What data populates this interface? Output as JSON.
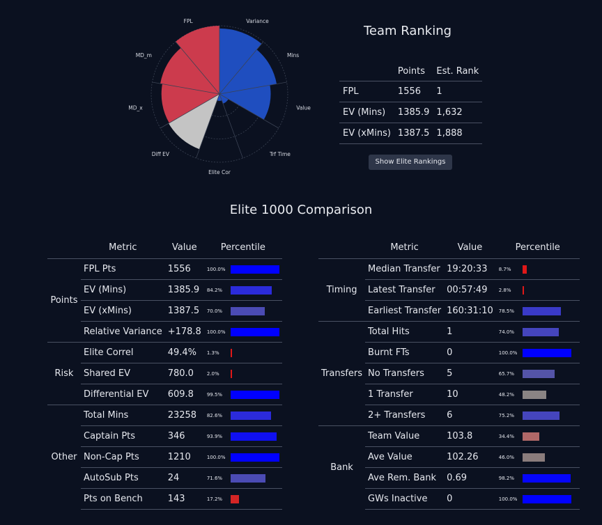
{
  "radar": {
    "labels": [
      "Variance",
      "Mins",
      "Value",
      "Trf Time",
      "Elite Cor",
      "Diff EV",
      "MD_x",
      "MD_m",
      "FPL"
    ],
    "values": [
      0.96,
      0.85,
      0.75,
      0.15,
      0.1,
      0.86,
      0.85,
      0.88,
      1.0
    ],
    "colors": [
      "#1f4ebf",
      "#1f4ebf",
      "#1f4ebf",
      "#1f4ebf",
      "#1f4ebf",
      "#c4c4c4",
      "#cc3b4d",
      "#cc3b4d",
      "#cc3b4d"
    ]
  },
  "ranking": {
    "title": "Team Ranking",
    "headers": [
      "",
      "Points",
      "Est. Rank"
    ],
    "rows": [
      {
        "name": "FPL",
        "points": "1556",
        "rank": "1"
      },
      {
        "name": "EV (Mins)",
        "points": "1385.9",
        "rank": "1,632"
      },
      {
        "name": "EV (xMins)",
        "points": "1387.5",
        "rank": "1,888"
      }
    ],
    "button_label": "Show Elite Rankings"
  },
  "comparison": {
    "title": "Elite 1000 Comparison",
    "headers": [
      "",
      "Metric",
      "Value",
      "Percentile"
    ],
    "left": [
      {
        "group": "Points",
        "rows": [
          {
            "metric": "FPL Pts",
            "value": "1556",
            "pct": "100.0%",
            "level": 1.0,
            "color": "#0000ff"
          },
          {
            "metric": "EV (Mins)",
            "value": "1385.9",
            "pct": "84.2%",
            "level": 0.842,
            "color": "#2b2bdb"
          },
          {
            "metric": "EV (xMins)",
            "value": "1387.5",
            "pct": "70.0%",
            "level": 0.7,
            "color": "#4b4bb4"
          },
          {
            "metric": "Relative Variance",
            "value": "+178.8",
            "pct": "100.0%",
            "level": 1.0,
            "color": "#0000ff"
          }
        ]
      },
      {
        "group": "Risk",
        "rows": [
          {
            "metric": "Elite Correl",
            "value": "49.4%",
            "pct": "1.3%",
            "level": 0.013,
            "color": "#e01818"
          },
          {
            "metric": "Shared EV",
            "value": "780.0",
            "pct": "2.0%",
            "level": 0.02,
            "color": "#e01818"
          },
          {
            "metric": "Differential EV",
            "value": "609.8",
            "pct": "99.5%",
            "level": 0.995,
            "color": "#0000ff"
          }
        ]
      },
      {
        "group": "Other",
        "rows": [
          {
            "metric": "Total Mins",
            "value": "23258",
            "pct": "82.6%",
            "level": 0.826,
            "color": "#2b2bdb"
          },
          {
            "metric": "Captain Pts",
            "value": "346",
            "pct": "93.9%",
            "level": 0.939,
            "color": "#1010f0"
          },
          {
            "metric": "Non-Cap Pts",
            "value": "1210",
            "pct": "100.0%",
            "level": 1.0,
            "color": "#0000ff"
          },
          {
            "metric": "AutoSub Pts",
            "value": "24",
            "pct": "71.6%",
            "level": 0.716,
            "color": "#4b4bb4"
          },
          {
            "metric": "Pts on Bench",
            "value": "143",
            "pct": "17.2%",
            "level": 0.172,
            "color": "#d42525"
          }
        ]
      }
    ],
    "right": [
      {
        "group": "Timing",
        "rows": [
          {
            "metric": "Median Transfer",
            "value": "19:20:33",
            "pct": "8.7%",
            "level": 0.087,
            "color": "#e01818"
          },
          {
            "metric": "Latest Transfer",
            "value": "00:57:49",
            "pct": "2.8%",
            "level": 0.028,
            "color": "#e01818"
          },
          {
            "metric": "Earliest Transfer",
            "value": "160:31:10",
            "pct": "78.5%",
            "level": 0.785,
            "color": "#3a3ac8"
          }
        ]
      },
      {
        "group": "Transfers",
        "rows": [
          {
            "metric": "Total Hits",
            "value": "1",
            "pct": "74.0%",
            "level": 0.74,
            "color": "#4545bd"
          },
          {
            "metric": "Burnt FTs",
            "value": "0",
            "pct": "100.0%",
            "level": 1.0,
            "color": "#0000ff"
          },
          {
            "metric": "No Transfers",
            "value": "5",
            "pct": "65.7%",
            "level": 0.657,
            "color": "#5454a8"
          },
          {
            "metric": "1 Transfer",
            "value": "10",
            "pct": "48.2%",
            "level": 0.482,
            "color": "#8a8484"
          },
          {
            "metric": "2+ Transfers",
            "value": "6",
            "pct": "75.2%",
            "level": 0.752,
            "color": "#4545bd"
          }
        ]
      },
      {
        "group": "Bank",
        "rows": [
          {
            "metric": "Team Value",
            "value": "103.8",
            "pct": "34.4%",
            "level": 0.344,
            "color": "#b06868"
          },
          {
            "metric": "Ave Value",
            "value": "102.26",
            "pct": "46.0%",
            "level": 0.46,
            "color": "#8a7c7c"
          },
          {
            "metric": "Ave Rem. Bank",
            "value": "0.69",
            "pct": "98.2%",
            "level": 0.982,
            "color": "#0505fa"
          },
          {
            "metric": "GWs Inactive",
            "value": "0",
            "pct": "100.0%",
            "level": 1.0,
            "color": "#0000ff"
          }
        ]
      }
    ]
  }
}
